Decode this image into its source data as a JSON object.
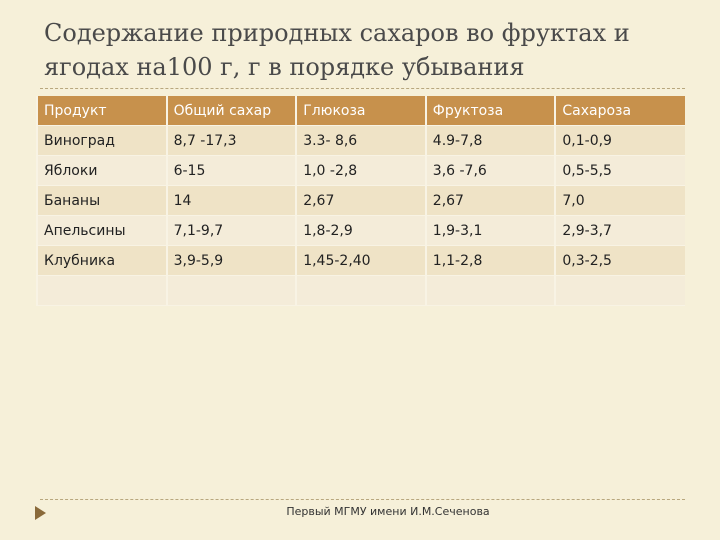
{
  "header": {
    "title": "Содержание природных сахаров во фруктах и ягодах на100 г, г в порядке убывания"
  },
  "table": {
    "columns": [
      "Продукт",
      "Общий сахар",
      "Глюкоза",
      "Фруктоза",
      "Сахароза"
    ],
    "rows": [
      [
        "Виноград",
        "8,7 -17,3",
        "3.3- 8,6",
        "4.9-7,8",
        "0,1-0,9"
      ],
      [
        "Яблоки",
        "6-15",
        "1,0 -2,8",
        "3,6 -7,6",
        "0,5-5,5"
      ],
      [
        "Бананы",
        "14",
        "2,67",
        "2,67",
        "7,0"
      ],
      [
        "Апельсины",
        "7,1-9,7",
        "1,8-2,9",
        "1,9-3,1",
        "2,9-3,7"
      ],
      [
        "Клубника",
        "3,9-5,9",
        "1,45-2,40",
        "1,1-2,8",
        "0,3-2,5"
      ]
    ]
  },
  "footer": {
    "text": "Первый МГМУ имени И.М.Сеченова"
  }
}
